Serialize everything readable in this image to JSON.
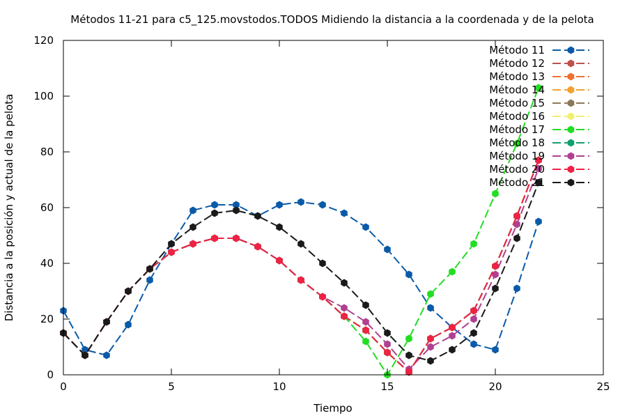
{
  "chart_data": {
    "type": "line",
    "title": "Métodos 11-21 para c5_125.movstodos.TODOS Midiendo la distancia a la coordenada y de la pelota",
    "xlabel": "Tiempo",
    "ylabel": "Distancia a la posición y actual de la pelota",
    "xlim": [
      0,
      25
    ],
    "ylim": [
      0,
      120
    ],
    "xticks": [
      0,
      5,
      10,
      15,
      20,
      25
    ],
    "yticks": [
      0,
      20,
      40,
      60,
      80,
      100,
      120
    ],
    "grid": false,
    "legend_position": "top-right",
    "series": [
      {
        "name": "Método 11",
        "color": "#0a5aa8",
        "x": [
          0,
          1,
          2,
          3,
          4,
          5,
          6,
          7,
          8,
          9,
          10,
          11,
          12,
          13,
          14,
          15,
          16,
          17,
          18,
          19,
          20,
          21,
          22
        ],
        "y": [
          23,
          9,
          7,
          18,
          34,
          47,
          59,
          61,
          61,
          57,
          61,
          62,
          61,
          58,
          53,
          45,
          36,
          24,
          17,
          11,
          9,
          31,
          55
        ]
      },
      {
        "name": "Método 12",
        "color": "#c0504d",
        "x": [
          0,
          1,
          2,
          3,
          4,
          5,
          6,
          7,
          8,
          9,
          10,
          11,
          12,
          13,
          14,
          15,
          16,
          17,
          18,
          19,
          20,
          21,
          22
        ],
        "y": [
          15,
          7,
          19,
          30,
          38,
          44,
          47,
          49,
          49,
          46,
          41,
          34,
          28,
          21,
          16,
          8,
          1,
          13,
          17,
          23,
          39,
          57,
          77
        ]
      },
      {
        "name": "Método 13",
        "color": "#f07030",
        "x": [
          0,
          1,
          2,
          3,
          4,
          5,
          6,
          7,
          8,
          9,
          10,
          11,
          12,
          13,
          14,
          15,
          16,
          17,
          18,
          19,
          20,
          21,
          22
        ],
        "y": [
          15,
          7,
          19,
          30,
          38,
          44,
          47,
          49,
          49,
          46,
          41,
          34,
          28,
          21,
          16,
          8,
          1,
          13,
          17,
          23,
          39,
          57,
          77
        ]
      },
      {
        "name": "Método 14",
        "color": "#f5a030",
        "x": [
          0,
          1,
          2,
          3,
          4,
          5,
          6,
          7,
          8,
          9,
          10,
          11,
          12,
          13,
          14,
          15,
          16,
          17,
          18,
          19,
          20,
          21,
          22
        ],
        "y": [
          15,
          7,
          19,
          30,
          38,
          44,
          47,
          49,
          49,
          46,
          41,
          34,
          28,
          21,
          16,
          8,
          1,
          13,
          17,
          23,
          39,
          57,
          77
        ]
      },
      {
        "name": "Método 15",
        "color": "#8a7a5a",
        "x": [
          0,
          1,
          2,
          3,
          4,
          5,
          6,
          7,
          8,
          9,
          10,
          11,
          12,
          13,
          14,
          15,
          16,
          17,
          18,
          19,
          20,
          21,
          22
        ],
        "y": [
          15,
          7,
          19,
          30,
          38,
          44,
          47,
          49,
          49,
          46,
          41,
          34,
          28,
          21,
          16,
          8,
          1,
          13,
          17,
          23,
          39,
          57,
          77
        ]
      },
      {
        "name": "Método 16",
        "color": "#f0f070",
        "x": [
          0,
          1,
          2,
          3,
          4,
          5,
          6,
          7,
          8,
          9,
          10,
          11,
          12,
          13,
          14,
          15,
          16,
          17,
          18,
          19,
          20,
          21,
          22
        ],
        "y": [
          15,
          7,
          19,
          30,
          38,
          44,
          47,
          49,
          49,
          46,
          41,
          34,
          28,
          21,
          16,
          8,
          1,
          13,
          17,
          23,
          39,
          57,
          77
        ]
      },
      {
        "name": "Método 17",
        "color": "#22dd22",
        "x": [
          0,
          1,
          2,
          3,
          4,
          5,
          6,
          7,
          8,
          9,
          10,
          11,
          12,
          13,
          14,
          15,
          16,
          17,
          18,
          19,
          20,
          21,
          22
        ],
        "y": [
          15,
          7,
          19,
          30,
          38,
          44,
          47,
          49,
          49,
          46,
          41,
          34,
          28,
          21,
          12,
          0,
          13,
          29,
          37,
          47,
          65,
          83,
          103
        ]
      },
      {
        "name": "Método 18",
        "color": "#10a070",
        "x": [
          0,
          1,
          2,
          3,
          4,
          5,
          6,
          7,
          8,
          9,
          10,
          11,
          12,
          13,
          14,
          15,
          16,
          17,
          18,
          19,
          20,
          21,
          22
        ],
        "y": [
          15,
          7,
          19,
          30,
          38,
          44,
          47,
          49,
          49,
          46,
          41,
          34,
          28,
          21,
          16,
          8,
          1,
          13,
          17,
          23,
          39,
          57,
          77
        ]
      },
      {
        "name": "Método 19",
        "color": "#b04090",
        "x": [
          0,
          1,
          2,
          3,
          4,
          5,
          6,
          7,
          8,
          9,
          10,
          11,
          12,
          13,
          14,
          15,
          16,
          17,
          18,
          19,
          20,
          21,
          22
        ],
        "y": [
          15,
          7,
          19,
          30,
          38,
          44,
          47,
          49,
          49,
          46,
          41,
          34,
          28,
          24,
          19,
          11,
          2,
          10,
          14,
          20,
          36,
          54,
          74
        ]
      },
      {
        "name": "Método 20",
        "color": "#ee2244",
        "x": [
          0,
          1,
          2,
          3,
          4,
          5,
          6,
          7,
          8,
          9,
          10,
          11,
          12,
          13,
          14,
          15,
          16,
          17,
          18,
          19,
          20,
          21,
          22
        ],
        "y": [
          15,
          7,
          19,
          30,
          38,
          44,
          47,
          49,
          49,
          46,
          41,
          34,
          28,
          21,
          16,
          8,
          1,
          13,
          17,
          23,
          39,
          57,
          77
        ]
      },
      {
        "name": "Método 21",
        "color": "#1a1a1a",
        "x": [
          0,
          1,
          2,
          3,
          4,
          5,
          6,
          7,
          8,
          9,
          10,
          11,
          12,
          13,
          14,
          15,
          16,
          17,
          18,
          19,
          20,
          21,
          22
        ],
        "y": [
          15,
          7,
          19,
          30,
          38,
          47,
          53,
          58,
          59,
          57,
          53,
          47,
          40,
          33,
          25,
          15,
          7,
          5,
          9,
          15,
          31,
          49,
          69
        ]
      }
    ]
  }
}
